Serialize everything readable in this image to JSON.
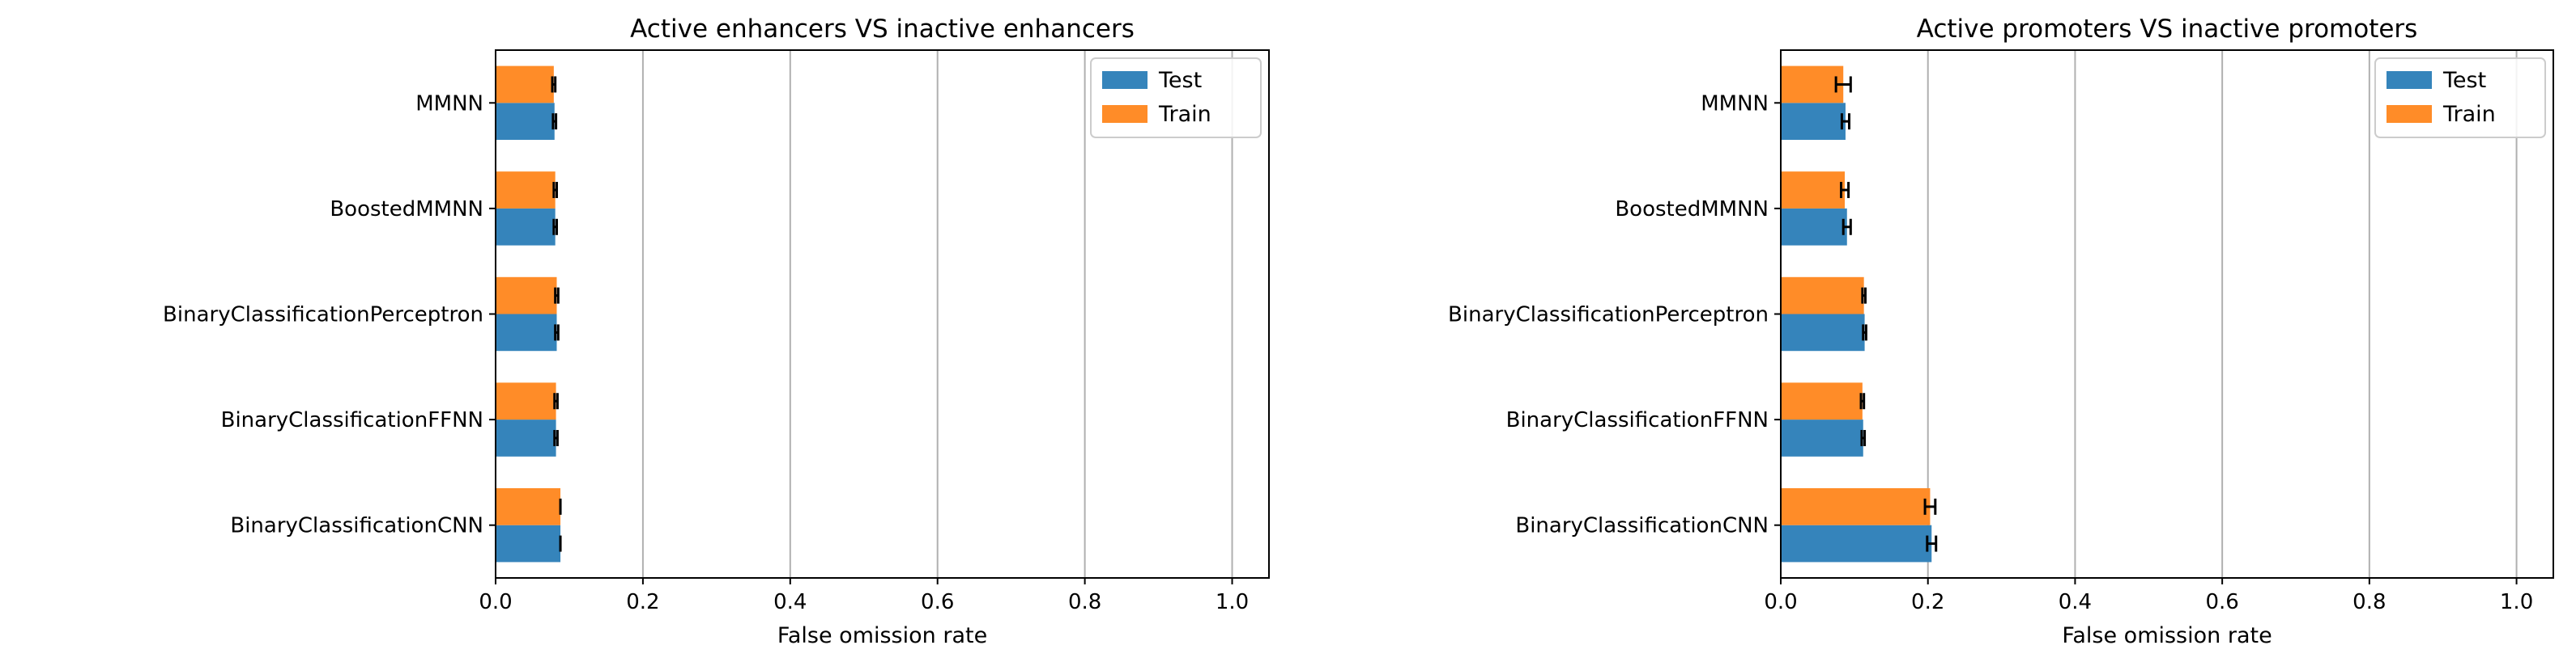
{
  "chart_data": [
    {
      "type": "bar",
      "orientation": "horizontal",
      "title": "Active enhancers VS inactive enhancers",
      "xlabel": "False omission rate",
      "ylabel": "",
      "xlim": [
        0,
        1
      ],
      "xticks": [
        "0.0",
        "0.2",
        "0.4",
        "0.6",
        "0.8",
        "1.0"
      ],
      "grid": "vertical",
      "legend_position": "top-right",
      "categories": [
        "MMNN",
        "BoostedMMNN",
        "BinaryClassificationPerceptron",
        "BinaryClassificationFFNN",
        "BinaryClassificationCNN"
      ],
      "series": [
        {
          "name": "Test",
          "color": "#3584bb",
          "values": [
            0.08,
            0.081,
            0.083,
            0.082,
            0.088
          ],
          "errors": [
            0.002,
            0.002,
            0.002,
            0.002,
            0.0
          ]
        },
        {
          "name": "Train",
          "color": "#ff8c28",
          "values": [
            0.079,
            0.081,
            0.083,
            0.082,
            0.088
          ],
          "errors": [
            0.002,
            0.002,
            0.002,
            0.002,
            0.0
          ]
        }
      ]
    },
    {
      "type": "bar",
      "orientation": "horizontal",
      "title": "Active promoters VS inactive promoters",
      "xlabel": "False omission rate",
      "ylabel": "",
      "xlim": [
        0,
        1
      ],
      "xticks": [
        "0.0",
        "0.2",
        "0.4",
        "0.6",
        "0.8",
        "1.0"
      ],
      "grid": "vertical",
      "legend_position": "top-right",
      "categories": [
        "MMNN",
        "BoostedMMNN",
        "BinaryClassificationPerceptron",
        "BinaryClassificationFFNN",
        "BinaryClassificationCNN"
      ],
      "series": [
        {
          "name": "Test",
          "color": "#3584bb",
          "values": [
            0.088,
            0.09,
            0.114,
            0.112,
            0.205
          ],
          "errors": [
            0.005,
            0.005,
            0.002,
            0.002,
            0.006
          ]
        },
        {
          "name": "Train",
          "color": "#ff8c28",
          "values": [
            0.085,
            0.087,
            0.113,
            0.111,
            0.203
          ],
          "errors": [
            0.01,
            0.005,
            0.002,
            0.002,
            0.007
          ]
        }
      ]
    }
  ]
}
